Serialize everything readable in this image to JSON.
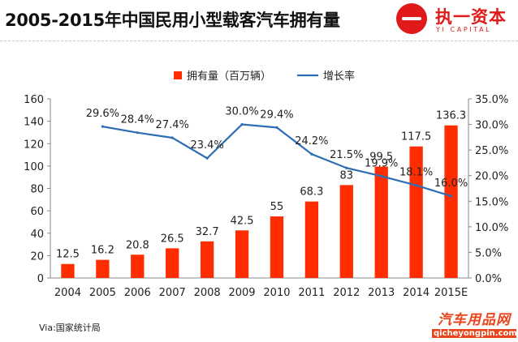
{
  "header": {
    "title": "2005-2015年中国民用小型载客汽车拥有量"
  },
  "logo": {
    "name_cn": "执一资本",
    "name_en": "YI CAPITAL"
  },
  "source_note": "Via:国家统计局",
  "watermark": {
    "text_cn": "汽车用品网",
    "url": "qicheyongpin.com"
  },
  "colors": {
    "bar": "#ff2d00",
    "line": "#2e6db4",
    "axis_text": "#222222",
    "brand_red": "#e01a1a"
  },
  "chart_data": {
    "type": "bar",
    "categories": [
      "2004",
      "2005",
      "2006",
      "2007",
      "2008",
      "2009",
      "2010",
      "2011",
      "2012",
      "2013",
      "2014",
      "2015E"
    ],
    "series": [
      {
        "name": "拥有量（百万辆）",
        "type": "bar",
        "axis": "left",
        "values": [
          12.5,
          16.2,
          20.8,
          26.5,
          32.7,
          42.5,
          55,
          68.3,
          83,
          99.5,
          117.5,
          136.3
        ],
        "labels": [
          "12.5",
          "16.2",
          "20.8",
          "26.5",
          "32.7",
          "42.5",
          "55",
          "68.3",
          "83",
          "99.5",
          "117.5",
          "136.3"
        ]
      },
      {
        "name": "增长率",
        "type": "line",
        "axis": "right",
        "values": [
          null,
          29.6,
          28.4,
          27.4,
          23.4,
          30.0,
          29.4,
          24.2,
          21.5,
          19.9,
          18.1,
          16.0
        ],
        "labels": [
          "",
          "29.6%",
          "28.4%",
          "27.4%",
          "23.4%",
          "30.0%",
          "29.4%",
          "24.2%",
          "21.5%",
          "19.9%",
          "18.1%",
          "16.0%"
        ]
      }
    ],
    "y_left": {
      "ylim": [
        0,
        160
      ],
      "ticks": [
        "0",
        "20",
        "40",
        "60",
        "80",
        "100",
        "120",
        "140",
        "160"
      ]
    },
    "y_right": {
      "ylim": [
        0,
        35
      ],
      "ticks": [
        "0.0%",
        "5.0%",
        "10.0%",
        "15.0%",
        "20.0%",
        "25.0%",
        "30.0%",
        "35.0%"
      ]
    },
    "legend_position": "top-center",
    "grid": false
  }
}
